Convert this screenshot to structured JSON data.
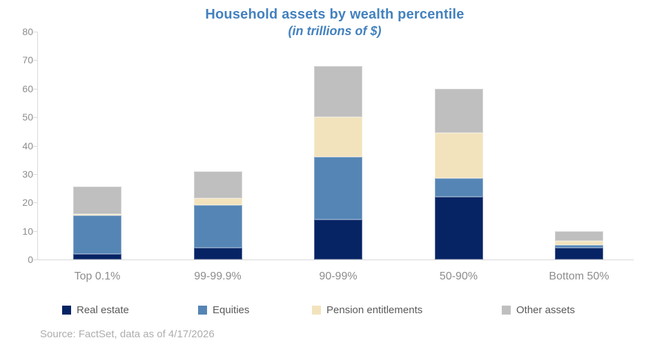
{
  "title": "Household assets by wealth percentile",
  "subtitle": "(in trillions of $)",
  "source": "Source: FactSet, data as of 4/17/2026",
  "colors": {
    "title_blue": "#4381be",
    "real_estate_navy": "#062364",
    "equities_blue": "#5585b5",
    "pension_cream": "#f2e3bd",
    "other_gray": "#bfbfbf",
    "axis_gray": "#d9d9d9",
    "tick_label_gray": "#8c8c8c",
    "legend_text_gray": "#595959",
    "source_gray": "#adadad"
  },
  "chart_data": {
    "type": "bar",
    "stacked": true,
    "title": "Household assets by wealth percentile",
    "subtitle": "(in trillions of $)",
    "xlabel": "",
    "ylabel": "",
    "ylim": [
      0,
      80
    ],
    "ytick_step": 10,
    "grid": false,
    "legend_position": "bottom",
    "categories": [
      "Top 0.1%",
      "99-99.9%",
      "90-99%",
      "50-90%",
      "Bottom 50%"
    ],
    "series": [
      {
        "name": "Real estate",
        "color": "#062364",
        "values": [
          2,
          4,
          14,
          22,
          4
        ]
      },
      {
        "name": "Equities",
        "color": "#5585b5",
        "values": [
          13.5,
          15,
          22,
          6.5,
          1
        ]
      },
      {
        "name": "Pension entitlements",
        "color": "#f2e3bd",
        "values": [
          0.5,
          2.5,
          14,
          16,
          1.5
        ]
      },
      {
        "name": "Other assets",
        "color": "#bfbfbf",
        "values": [
          9.5,
          9.5,
          18,
          15.5,
          3.5
        ]
      }
    ],
    "stack_totals": [
      25.5,
      31,
      68,
      60,
      10
    ]
  }
}
